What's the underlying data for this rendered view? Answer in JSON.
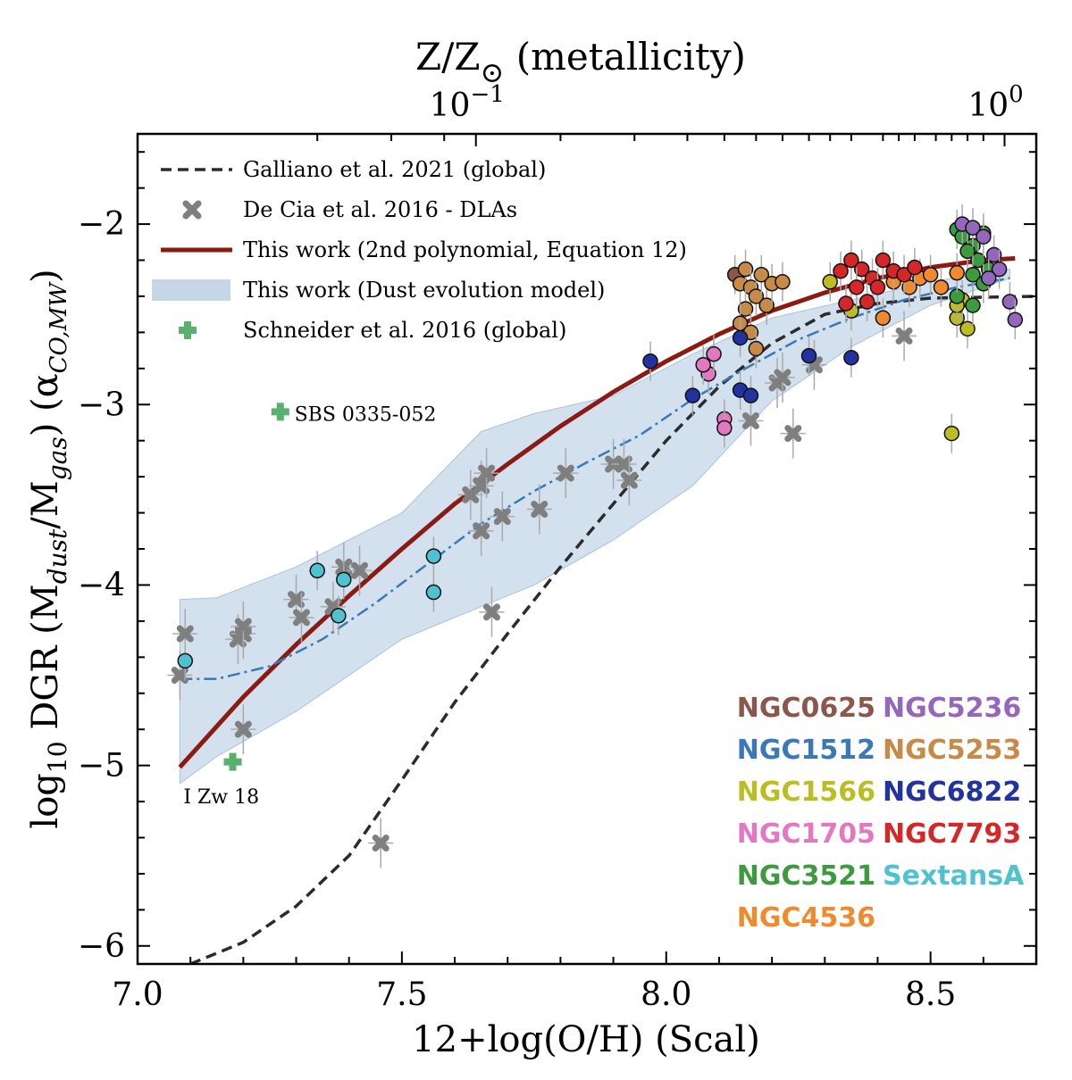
{
  "chart_data": {
    "type": "scatter",
    "xlabel": "12+log(O/H) (Scal)",
    "ylabel_main": "log",
    "ylabel_sub": "10",
    "ylabel_rest": " DGR (M",
    "ylabel_dust": "dust",
    "ylabel_mid": "/M",
    "ylabel_gas": "gas",
    "ylabel_alpha": ") (α",
    "ylabel_alpha_sub": "CO,MW",
    "ylabel_close": ")",
    "top_axis_label": "Z/Z",
    "top_axis_label_rest": " (metallicity)",
    "top_axis_sun": "⊙",
    "xlim": [
      7.0,
      8.7
    ],
    "ylim": [
      -6.1,
      -1.5
    ],
    "x_ticks": [
      {
        "v": 7.0,
        "label": "7.0"
      },
      {
        "v": 7.5,
        "label": "7.5"
      },
      {
        "v": 8.0,
        "label": "8.0"
      },
      {
        "v": 8.5,
        "label": "8.5"
      }
    ],
    "y_ticks": [
      {
        "v": -2,
        "label": "−2"
      },
      {
        "v": -3,
        "label": "−3"
      },
      {
        "v": -4,
        "label": "−4"
      },
      {
        "v": -5,
        "label": "−5"
      },
      {
        "v": -6,
        "label": "−6"
      }
    ],
    "top_ticks": [
      {
        "x": 7.64,
        "base": "10",
        "exp": "−1"
      },
      {
        "x": 8.64,
        "base": "10",
        "exp": "0"
      }
    ],
    "legend": [
      {
        "key": "galliano",
        "label": "Galliano et al. 2021 (global)"
      },
      {
        "key": "decia",
        "label": "De Cia et al. 2016 - DLAs"
      },
      {
        "key": "poly",
        "label": "This work (2nd polynomial, Equation 12)"
      },
      {
        "key": "model",
        "label": "This work (Dust evolution model)"
      },
      {
        "key": "schneider",
        "label": "Schneider et al. 2016 (global)"
      }
    ],
    "colors": {
      "poly": "#8b1a13",
      "galliano": "#2b2b2b",
      "model_line": "#3a78b8",
      "model_band": "#c4d6e8",
      "decia": "#7f7f7f",
      "schneider": "#5ab06f",
      "errorbar": "#aaaaaa"
    },
    "series": [
      {
        "name": "Galliano et al. 2021 (global)",
        "type": "line",
        "x": [
          7.1,
          7.2,
          7.3,
          7.4,
          7.5,
          7.6,
          7.7,
          7.8,
          7.9,
          8.0,
          8.1,
          8.2,
          8.3,
          8.4,
          8.5,
          8.7
        ],
        "y": [
          -6.1,
          -5.98,
          -5.78,
          -5.5,
          -5.08,
          -4.65,
          -4.27,
          -3.9,
          -3.55,
          -3.2,
          -2.9,
          -2.66,
          -2.5,
          -2.44,
          -2.41,
          -2.4
        ]
      },
      {
        "name": "This work (2nd polynomial, Equation 12)",
        "type": "line",
        "x": [
          7.08,
          7.2,
          7.3,
          7.4,
          7.5,
          7.6,
          7.7,
          7.8,
          7.9,
          8.0,
          8.1,
          8.2,
          8.3,
          8.4,
          8.5,
          8.6,
          8.66
        ],
        "y": [
          -5.01,
          -4.62,
          -4.33,
          -4.06,
          -3.8,
          -3.55,
          -3.33,
          -3.12,
          -2.93,
          -2.76,
          -2.61,
          -2.48,
          -2.38,
          -2.3,
          -2.24,
          -2.2,
          -2.19
        ]
      },
      {
        "name": "This work (Dust evolution model) median",
        "type": "line",
        "x": [
          7.08,
          7.15,
          7.25,
          7.35,
          7.45,
          7.55,
          7.65,
          7.75,
          7.85,
          7.95,
          8.05,
          8.15,
          8.25,
          8.35,
          8.45,
          8.55,
          8.65
        ],
        "y": [
          -4.52,
          -4.52,
          -4.45,
          -4.3,
          -4.1,
          -3.88,
          -3.66,
          -3.48,
          -3.32,
          -3.17,
          -2.97,
          -2.8,
          -2.64,
          -2.52,
          -2.42,
          -2.35,
          -2.3
        ]
      },
      {
        "name": "This work (Dust evolution model) band",
        "type": "band",
        "x": [
          7.08,
          7.15,
          7.3,
          7.5,
          7.65,
          7.75,
          7.9,
          8.05,
          8.2,
          8.35,
          8.5,
          8.65
        ],
        "upper": [
          -4.08,
          -4.07,
          -3.9,
          -3.6,
          -3.15,
          -3.05,
          -2.95,
          -2.72,
          -2.52,
          -2.42,
          -2.32,
          -2.25
        ],
        "lower": [
          -5.1,
          -4.95,
          -4.7,
          -4.3,
          -4.12,
          -4.0,
          -3.75,
          -3.45,
          -2.98,
          -2.68,
          -2.45,
          -2.3
        ]
      },
      {
        "name": "De Cia et al. 2016 - DLAs",
        "type": "scatter",
        "points": [
          [
            7.08,
            -4.5
          ],
          [
            7.09,
            -4.27
          ],
          [
            7.19,
            -4.3
          ],
          [
            7.2,
            -4.27
          ],
          [
            7.2,
            -4.23
          ],
          [
            7.2,
            -4.8
          ],
          [
            7.3,
            -4.08
          ],
          [
            7.31,
            -4.18
          ],
          [
            7.37,
            -4.12
          ],
          [
            7.39,
            -3.9
          ],
          [
            7.42,
            -3.92
          ],
          [
            7.46,
            -5.43
          ],
          [
            7.63,
            -3.5
          ],
          [
            7.65,
            -3.45
          ],
          [
            7.66,
            -3.38
          ],
          [
            7.65,
            -3.7
          ],
          [
            7.67,
            -4.15
          ],
          [
            7.69,
            -3.62
          ],
          [
            7.76,
            -3.58
          ],
          [
            7.81,
            -3.38
          ],
          [
            7.9,
            -3.33
          ],
          [
            7.92,
            -3.33
          ],
          [
            7.93,
            -3.42
          ],
          [
            8.16,
            -3.09
          ],
          [
            8.21,
            -2.88
          ],
          [
            8.22,
            -2.85
          ],
          [
            8.24,
            -3.16
          ],
          [
            8.28,
            -2.78
          ],
          [
            8.45,
            -2.62
          ]
        ]
      },
      {
        "name": "Schneider et al. 2016 (global)",
        "type": "scatter",
        "points": [
          [
            7.18,
            -4.98
          ],
          [
            7.27,
            -3.04
          ]
        ]
      },
      {
        "name": "NGC0625",
        "type": "scatter",
        "points": [
          [
            8.13,
            -2.28
          ]
        ]
      },
      {
        "name": "NGC1512",
        "type": "scatter",
        "points": []
      },
      {
        "name": "NGC1566",
        "type": "scatter",
        "points": [
          [
            8.31,
            -2.32
          ],
          [
            8.35,
            -2.48
          ],
          [
            8.54,
            -3.16
          ],
          [
            8.55,
            -2.52
          ],
          [
            8.56,
            -2.42
          ],
          [
            8.57,
            -2.58
          ],
          [
            8.55,
            -2.45
          ]
        ]
      },
      {
        "name": "NGC1705",
        "type": "scatter",
        "points": [
          [
            8.08,
            -2.83
          ],
          [
            8.09,
            -2.72
          ],
          [
            8.07,
            -2.78
          ],
          [
            8.11,
            -3.08
          ],
          [
            8.11,
            -3.13
          ]
        ]
      },
      {
        "name": "NGC3521",
        "type": "scatter",
        "points": [
          [
            8.55,
            -2.03
          ],
          [
            8.56,
            -2.07
          ],
          [
            8.58,
            -2.12
          ],
          [
            8.59,
            -2.2
          ],
          [
            8.57,
            -2.15
          ],
          [
            8.6,
            -2.05
          ],
          [
            8.61,
            -2.25
          ],
          [
            8.58,
            -2.28
          ],
          [
            8.55,
            -2.4
          ],
          [
            8.6,
            -2.33
          ],
          [
            8.58,
            -2.45
          ]
        ]
      },
      {
        "name": "NGC4536",
        "type": "scatter",
        "points": [
          [
            8.41,
            -2.52
          ],
          [
            8.43,
            -2.32
          ],
          [
            8.46,
            -2.35
          ],
          [
            8.48,
            -2.3
          ],
          [
            8.52,
            -2.35
          ],
          [
            8.55,
            -2.27
          ],
          [
            8.5,
            -2.28
          ]
        ]
      },
      {
        "name": "NGC5236",
        "type": "scatter",
        "points": [
          [
            8.56,
            -2.0
          ],
          [
            8.58,
            -2.02
          ],
          [
            8.6,
            -2.07
          ],
          [
            8.62,
            -2.17
          ],
          [
            8.63,
            -2.25
          ],
          [
            8.65,
            -2.43
          ],
          [
            8.66,
            -2.53
          ],
          [
            8.61,
            -2.3
          ]
        ]
      },
      {
        "name": "NGC5253",
        "type": "scatter",
        "points": [
          [
            8.14,
            -2.33
          ],
          [
            8.15,
            -2.25
          ],
          [
            8.16,
            -2.35
          ],
          [
            8.17,
            -2.4
          ],
          [
            8.18,
            -2.28
          ],
          [
            8.19,
            -2.45
          ],
          [
            8.15,
            -2.47
          ],
          [
            8.14,
            -2.55
          ],
          [
            8.16,
            -2.6
          ],
          [
            8.17,
            -2.69
          ],
          [
            8.2,
            -2.33
          ],
          [
            8.22,
            -2.32
          ]
        ]
      },
      {
        "name": "NGC6822",
        "type": "scatter",
        "points": [
          [
            7.97,
            -2.76
          ],
          [
            8.05,
            -2.95
          ],
          [
            8.14,
            -2.92
          ],
          [
            8.14,
            -2.63
          ],
          [
            8.16,
            -2.95
          ],
          [
            8.27,
            -2.73
          ],
          [
            8.35,
            -2.74
          ]
        ]
      },
      {
        "name": "NGC7793",
        "type": "scatter",
        "points": [
          [
            8.33,
            -2.26
          ],
          [
            8.35,
            -2.2
          ],
          [
            8.37,
            -2.25
          ],
          [
            8.39,
            -2.3
          ],
          [
            8.41,
            -2.2
          ],
          [
            8.43,
            -2.26
          ],
          [
            8.45,
            -2.28
          ],
          [
            8.47,
            -2.24
          ],
          [
            8.36,
            -2.35
          ],
          [
            8.38,
            -2.43
          ],
          [
            8.34,
            -2.44
          ],
          [
            8.4,
            -2.35
          ]
        ]
      },
      {
        "name": "SextansA",
        "type": "scatter",
        "points": [
          [
            7.09,
            -4.42
          ],
          [
            7.34,
            -3.92
          ],
          [
            7.38,
            -4.17
          ],
          [
            7.39,
            -3.97
          ],
          [
            7.56,
            -3.84
          ],
          [
            7.56,
            -4.04
          ]
        ]
      }
    ],
    "annotations": [
      {
        "text": "SBS 0335-052",
        "x": 7.29,
        "y": -3.04
      },
      {
        "text": "I Zw 18",
        "x": 7.08,
        "y": -5.16
      }
    ],
    "galaxy_labels": [
      {
        "name": "NGC0625",
        "color": "#8c564b"
      },
      {
        "name": "NGC5236",
        "color": "#9467bd"
      },
      {
        "name": "NGC1512",
        "color": "#3a78b8"
      },
      {
        "name": "NGC5253",
        "color": "#c88a47"
      },
      {
        "name": "NGC1566",
        "color": "#bcbd22"
      },
      {
        "name": "NGC6822",
        "color": "#2233a0"
      },
      {
        "name": "NGC1705",
        "color": "#e377c2"
      },
      {
        "name": "NGC7793",
        "color": "#d62728"
      },
      {
        "name": "NGC3521",
        "color": "#3e9a3e"
      },
      {
        "name": "SextansA",
        "color": "#4fc1d0"
      },
      {
        "name": "NGC4536",
        "color": "#f08a2f"
      }
    ]
  }
}
